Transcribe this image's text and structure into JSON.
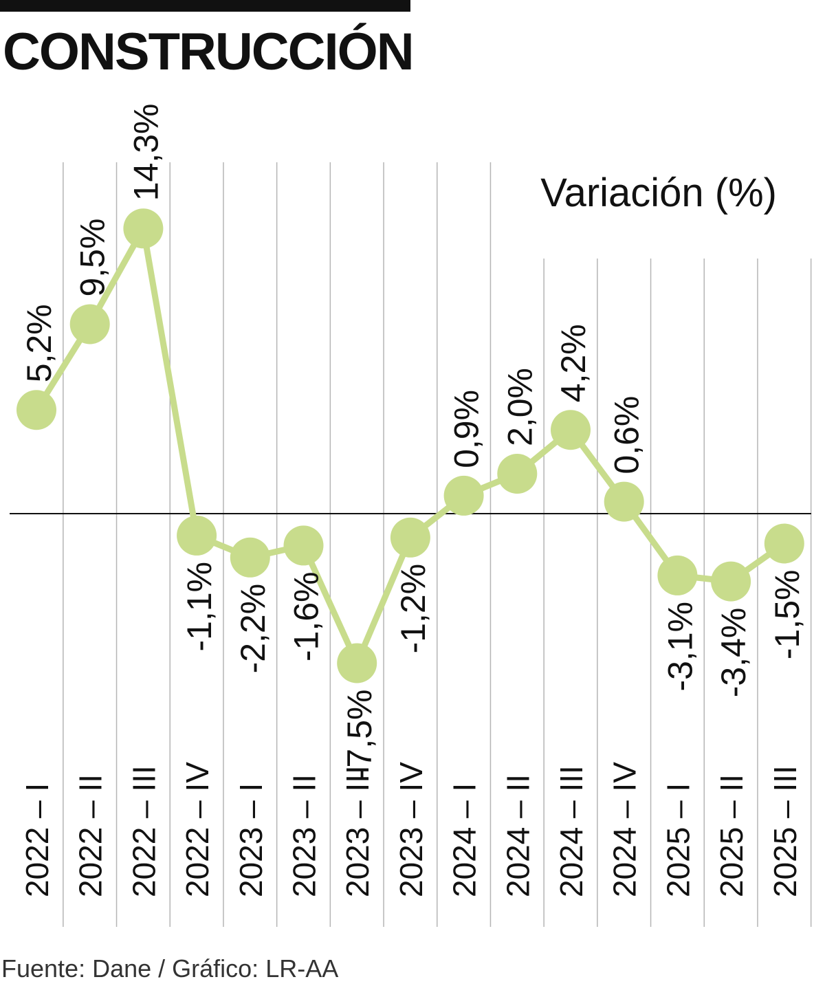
{
  "title": "CONSTRUCCIÓN",
  "source": "Fuente: Dane / Gráfico: LR-AA",
  "colors": {
    "line": "#c8dc8c",
    "point": "#c8dc8c",
    "grid": "#b5b5b5",
    "text": "#111111"
  },
  "chart_data": {
    "type": "line",
    "ylabel": "Variación (%)",
    "categories": [
      "2022 – I",
      "2022 – II",
      "2022 – III",
      "2022 – IV",
      "2023 – I",
      "2023 – II",
      "2023 – III",
      "2023 – IV",
      "2024 – I",
      "2024 – II",
      "2024 – III",
      "2024 – IV",
      "2025 – I",
      "2025 – II",
      "2025 – III"
    ],
    "values": [
      5.2,
      9.5,
      14.3,
      -1.1,
      -2.2,
      -1.6,
      -7.5,
      -1.2,
      0.9,
      2.0,
      4.2,
      0.6,
      -3.1,
      -3.4,
      -1.5
    ],
    "value_labels": [
      "5,2%",
      "9,5%",
      "14,3%",
      "-1,1%",
      "-2,2%",
      "-1,6%",
      "-7,5%",
      "-1,2%",
      "0,9%",
      "2,0%",
      "4,2%",
      "0,6%",
      "-3,1%",
      "-3,4%",
      "-1,5%"
    ],
    "zero_line": true,
    "grid": "vertical"
  }
}
